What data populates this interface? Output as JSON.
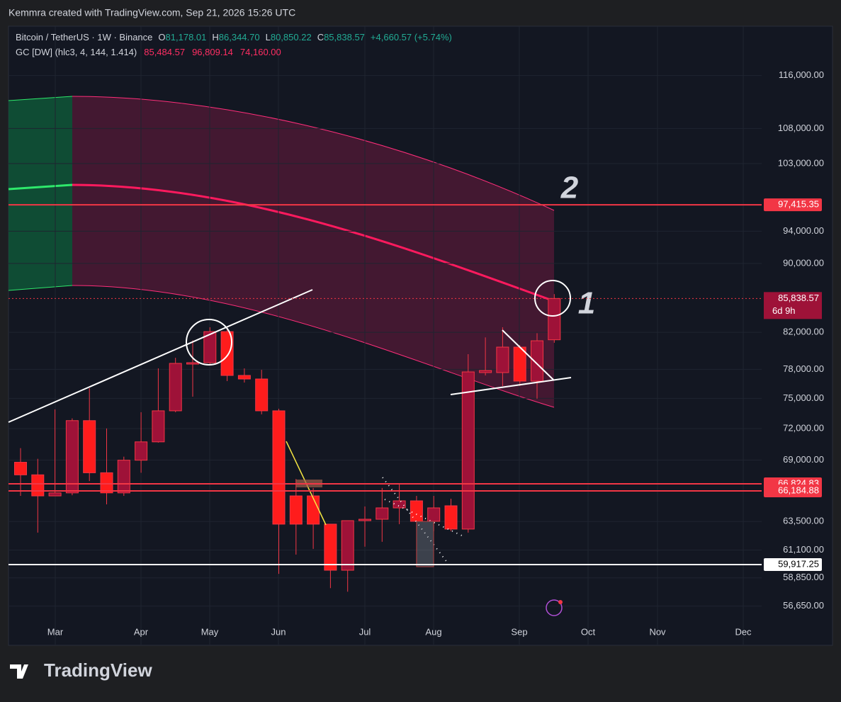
{
  "header": {
    "credit": "Kemmra created with TradingView.com, Sep 21, 2026 15:26 UTC",
    "brand": "TradingView"
  },
  "legend": {
    "symbol": "Bitcoin / TetherUS · 1W · Binance",
    "o_key": "O",
    "o": "81,178.01",
    "h_key": "H",
    "h": "86,344.70",
    "l_key": "L",
    "l": "80,850.22",
    "c_key": "C",
    "c": "85,838.57",
    "change": "+4,660.57 (+5.74%)",
    "indicator": "GC [DW] (hlc3, 4, 144, 1.414)",
    "ind_mid": "85,484.57",
    "ind_up": "96,809.14",
    "ind_low": "74,160.00"
  },
  "chart_data": {
    "type": "candlestick",
    "log_scale": true,
    "grid": true,
    "up_color": "#9e1238",
    "down_color": "#ff1c1c",
    "xticks": [
      "Mar",
      "Apr",
      "May",
      "Jun",
      "Jul",
      "Aug",
      "Sep",
      "Oct",
      "Nov",
      "Dec"
    ],
    "open": [
      68800,
      67640,
      65742,
      66010,
      72780,
      67830,
      66010,
      68990,
      70720,
      73750,
      78555,
      78705,
      82080,
      77360,
      76990,
      73750,
      65742,
      65742,
      63280,
      59460,
      63580,
      63700,
      64685,
      65305,
      63520,
      64870,
      62860,
      77660,
      77660,
      80378,
      76770,
      81178.01
    ],
    "high": [
      70120,
      69120,
      73890,
      73000,
      76040,
      72010,
      69320,
      73610,
      78100,
      79230,
      81118,
      82560,
      82560,
      78100,
      77950,
      73960,
      67260,
      66450,
      63280,
      63580,
      64810,
      66450,
      66760,
      65742,
      65742,
      65490,
      79612,
      81440,
      82560,
      80610,
      81900,
      86344.7
    ],
    "low": [
      65742,
      62560,
      65742,
      65800,
      67070,
      64995,
      65742,
      67830,
      70650,
      73610,
      75170,
      78480,
      76770,
      76620,
      73400,
      59170,
      60730,
      61200,
      58040,
      57760,
      61380,
      61790,
      63280,
      59745,
      62680,
      62680,
      62560,
      77360,
      76260,
      76260,
      74960,
      80850.22
    ],
    "close": [
      67640,
      65742,
      66010,
      72780,
      67830,
      66010,
      68990,
      70720,
      73750,
      78630,
      78705,
      82080,
      77360,
      76990,
      73750,
      63280,
      63280,
      63280,
      59460,
      63580,
      63700,
      64685,
      65305,
      63520,
      64685,
      62860,
      77730,
      77880,
      80378,
      76770,
      81070,
      85838.57
    ],
    "ylim": [
      53775,
      124000
    ],
    "yticks": [
      {
        "value": 116000,
        "label": "116,000.00"
      },
      {
        "value": 108000,
        "label": "108,000.00"
      },
      {
        "value": 103000,
        "label": "103,000.00"
      },
      {
        "value": 94000,
        "label": "94,000.00"
      },
      {
        "value": 90000,
        "label": "90,000.00"
      },
      {
        "value": 82000,
        "label": "82,000.00"
      },
      {
        "value": 78000,
        "label": "78,000.00"
      },
      {
        "value": 75000,
        "label": "75,000.00"
      },
      {
        "value": 72000,
        "label": "72,000.00"
      },
      {
        "value": 69000,
        "label": "69,000.00"
      },
      {
        "value": 63500,
        "label": "63,500.00"
      },
      {
        "value": 61100,
        "label": "61,100.00"
      },
      {
        "value": 58850,
        "label": "58,850.00"
      },
      {
        "value": 56650,
        "label": "56,650.00"
      }
    ],
    "levels": [
      {
        "value": 97415.35,
        "label": "97,415.35",
        "color": "#f23645"
      },
      {
        "value": 66824.83,
        "label": "66,824.83",
        "color": "#f23645"
      },
      {
        "value": 66184.88,
        "label": "66,184.88",
        "color": "#f23645"
      },
      {
        "value": 59917.25,
        "label": "59,917.25",
        "color": "#ffffff"
      }
    ],
    "last_price": {
      "value": 85838.57,
      "label": "85,838.57",
      "countdown": "6d 9h",
      "color": "#9e1238"
    },
    "annotations": [
      "1",
      "2"
    ]
  }
}
